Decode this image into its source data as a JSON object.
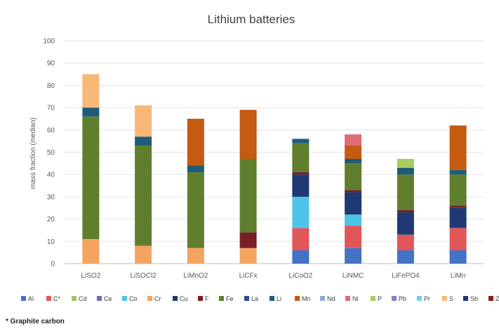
{
  "chart_data": {
    "type": "bar",
    "stacked": true,
    "title": "Lithium batteries",
    "xlabel": "",
    "ylabel": "mass fraction (median)",
    "ylim": [
      0,
      100
    ],
    "yticks": [
      0,
      10,
      20,
      30,
      40,
      50,
      60,
      70,
      80,
      90,
      100
    ],
    "grid": true,
    "legend_position": "bottom",
    "footnote": "* Graphite carbon",
    "categories": [
      "LiSO2",
      "LiSOCl2",
      "LiMnO2",
      "LiCFx",
      "LiCoO2",
      "LiNMC",
      "LiFePO4",
      "LiMn"
    ],
    "series": [
      {
        "name": "Al",
        "color": "#4472C4",
        "values": [
          0,
          0,
          0,
          0,
          6,
          7,
          6,
          6
        ]
      },
      {
        "name": "C*",
        "color": "#E15759",
        "values": [
          0,
          0,
          0,
          0,
          10,
          10,
          7,
          10
        ]
      },
      {
        "name": "Cd",
        "color": "#A5C26B",
        "values": [
          0,
          0,
          0,
          0,
          0,
          0,
          0,
          0
        ]
      },
      {
        "name": "Ce",
        "color": "#7B68B0",
        "values": [
          0,
          0,
          0,
          0,
          0,
          0,
          0,
          0
        ]
      },
      {
        "name": "Co",
        "color": "#4FC3E8",
        "values": [
          0,
          0,
          0,
          0,
          14,
          5,
          0,
          0
        ]
      },
      {
        "name": "Cr",
        "color": "#F4A460",
        "values": [
          11,
          8,
          7,
          7,
          0,
          0,
          0,
          0
        ]
      },
      {
        "name": "Cu",
        "color": "#1F3A73",
        "values": [
          0,
          0,
          0,
          0,
          10,
          10,
          10,
          9
        ]
      },
      {
        "name": "F",
        "color": "#7A1E28",
        "values": [
          0,
          0,
          0,
          7,
          1,
          1,
          1,
          1
        ]
      },
      {
        "name": "Fe",
        "color": "#5F7F2E",
        "values": [
          55,
          45,
          34,
          33,
          13,
          12,
          16,
          14
        ]
      },
      {
        "name": "La",
        "color": "#2E4B8F",
        "values": [
          0,
          0,
          0,
          0,
          0,
          0,
          0,
          0
        ]
      },
      {
        "name": "Li",
        "color": "#1F5C7A",
        "values": [
          4,
          4,
          3,
          0,
          2,
          2,
          3,
          2
        ]
      },
      {
        "name": "Mn",
        "color": "#C55A11",
        "values": [
          0,
          0,
          21,
          22,
          0,
          6,
          0,
          20
        ]
      },
      {
        "name": "Nd",
        "color": "#8EA9DB",
        "values": [
          0,
          0,
          0,
          0,
          0,
          0,
          0,
          0
        ]
      },
      {
        "name": "Ni",
        "color": "#E06C75",
        "values": [
          0,
          0,
          0,
          0,
          0,
          5,
          0,
          0
        ]
      },
      {
        "name": "P",
        "color": "#A9CC63",
        "values": [
          0,
          0,
          0,
          0,
          0,
          0,
          4,
          0
        ]
      },
      {
        "name": "Pb",
        "color": "#8E7CC3",
        "values": [
          0,
          0,
          0,
          0,
          0,
          0,
          0,
          0
        ]
      },
      {
        "name": "Pr",
        "color": "#6FD0EE",
        "values": [
          0,
          0,
          0,
          0,
          0,
          0,
          0,
          0
        ]
      },
      {
        "name": "S",
        "color": "#F8B878",
        "values": [
          15,
          14,
          0,
          0,
          0,
          0,
          0,
          0
        ]
      },
      {
        "name": "Sb",
        "color": "#1F3864",
        "values": [
          0,
          0,
          0,
          0,
          0,
          0,
          0,
          0
        ]
      },
      {
        "name": "Zn",
        "color": "#8B1A1A",
        "values": [
          0,
          0,
          0,
          0,
          0,
          0,
          0,
          0
        ]
      }
    ]
  }
}
